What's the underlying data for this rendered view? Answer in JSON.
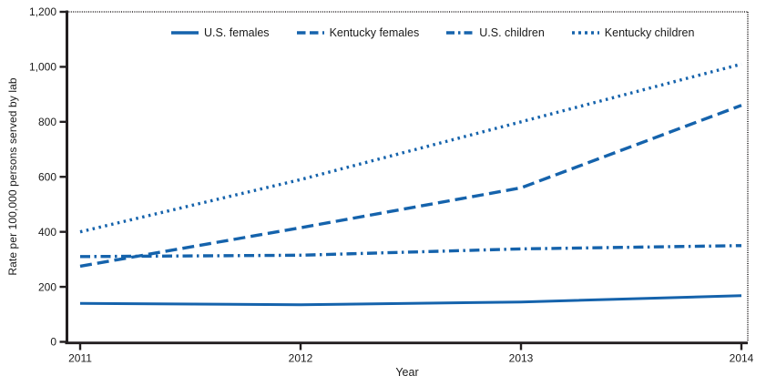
{
  "chart_data": {
    "type": "line",
    "x": [
      2011,
      2012,
      2013,
      2014
    ],
    "series": [
      {
        "name": "U.S. females",
        "style": "solid",
        "values": [
          140,
          135,
          145,
          168
        ]
      },
      {
        "name": "Kentucky females",
        "style": "dashed",
        "values": [
          275,
          415,
          560,
          860
        ]
      },
      {
        "name": "U.S. children",
        "style": "dashdot",
        "values": [
          310,
          315,
          338,
          350
        ]
      },
      {
        "name": "Kentucky children",
        "style": "dotted",
        "values": [
          400,
          590,
          800,
          1010
        ]
      }
    ],
    "title": "",
    "xlabel": "Year",
    "ylabel": "Rate per 100,000 persons served by lab",
    "ylim": [
      0,
      1200
    ],
    "xlim": [
      2011,
      2014
    ],
    "grid": "off",
    "legend_position": "top-inside",
    "line_color": "#1563ac",
    "axis_color": "#231f20",
    "y_ticks": [
      {
        "label": "0",
        "value": 0
      },
      {
        "label": "200",
        "value": 200
      },
      {
        "label": "400",
        "value": 400
      },
      {
        "label": "600",
        "value": 600
      },
      {
        "label": "800",
        "value": 800
      },
      {
        "label": "1,000",
        "value": 1000
      },
      {
        "label": "1,200",
        "value": 1200
      }
    ],
    "x_ticks": [
      {
        "label": "2011",
        "value": 2011
      },
      {
        "label": "2012",
        "value": 2012
      },
      {
        "label": "2013",
        "value": 2013
      },
      {
        "label": "2014",
        "value": 2014
      }
    ]
  }
}
